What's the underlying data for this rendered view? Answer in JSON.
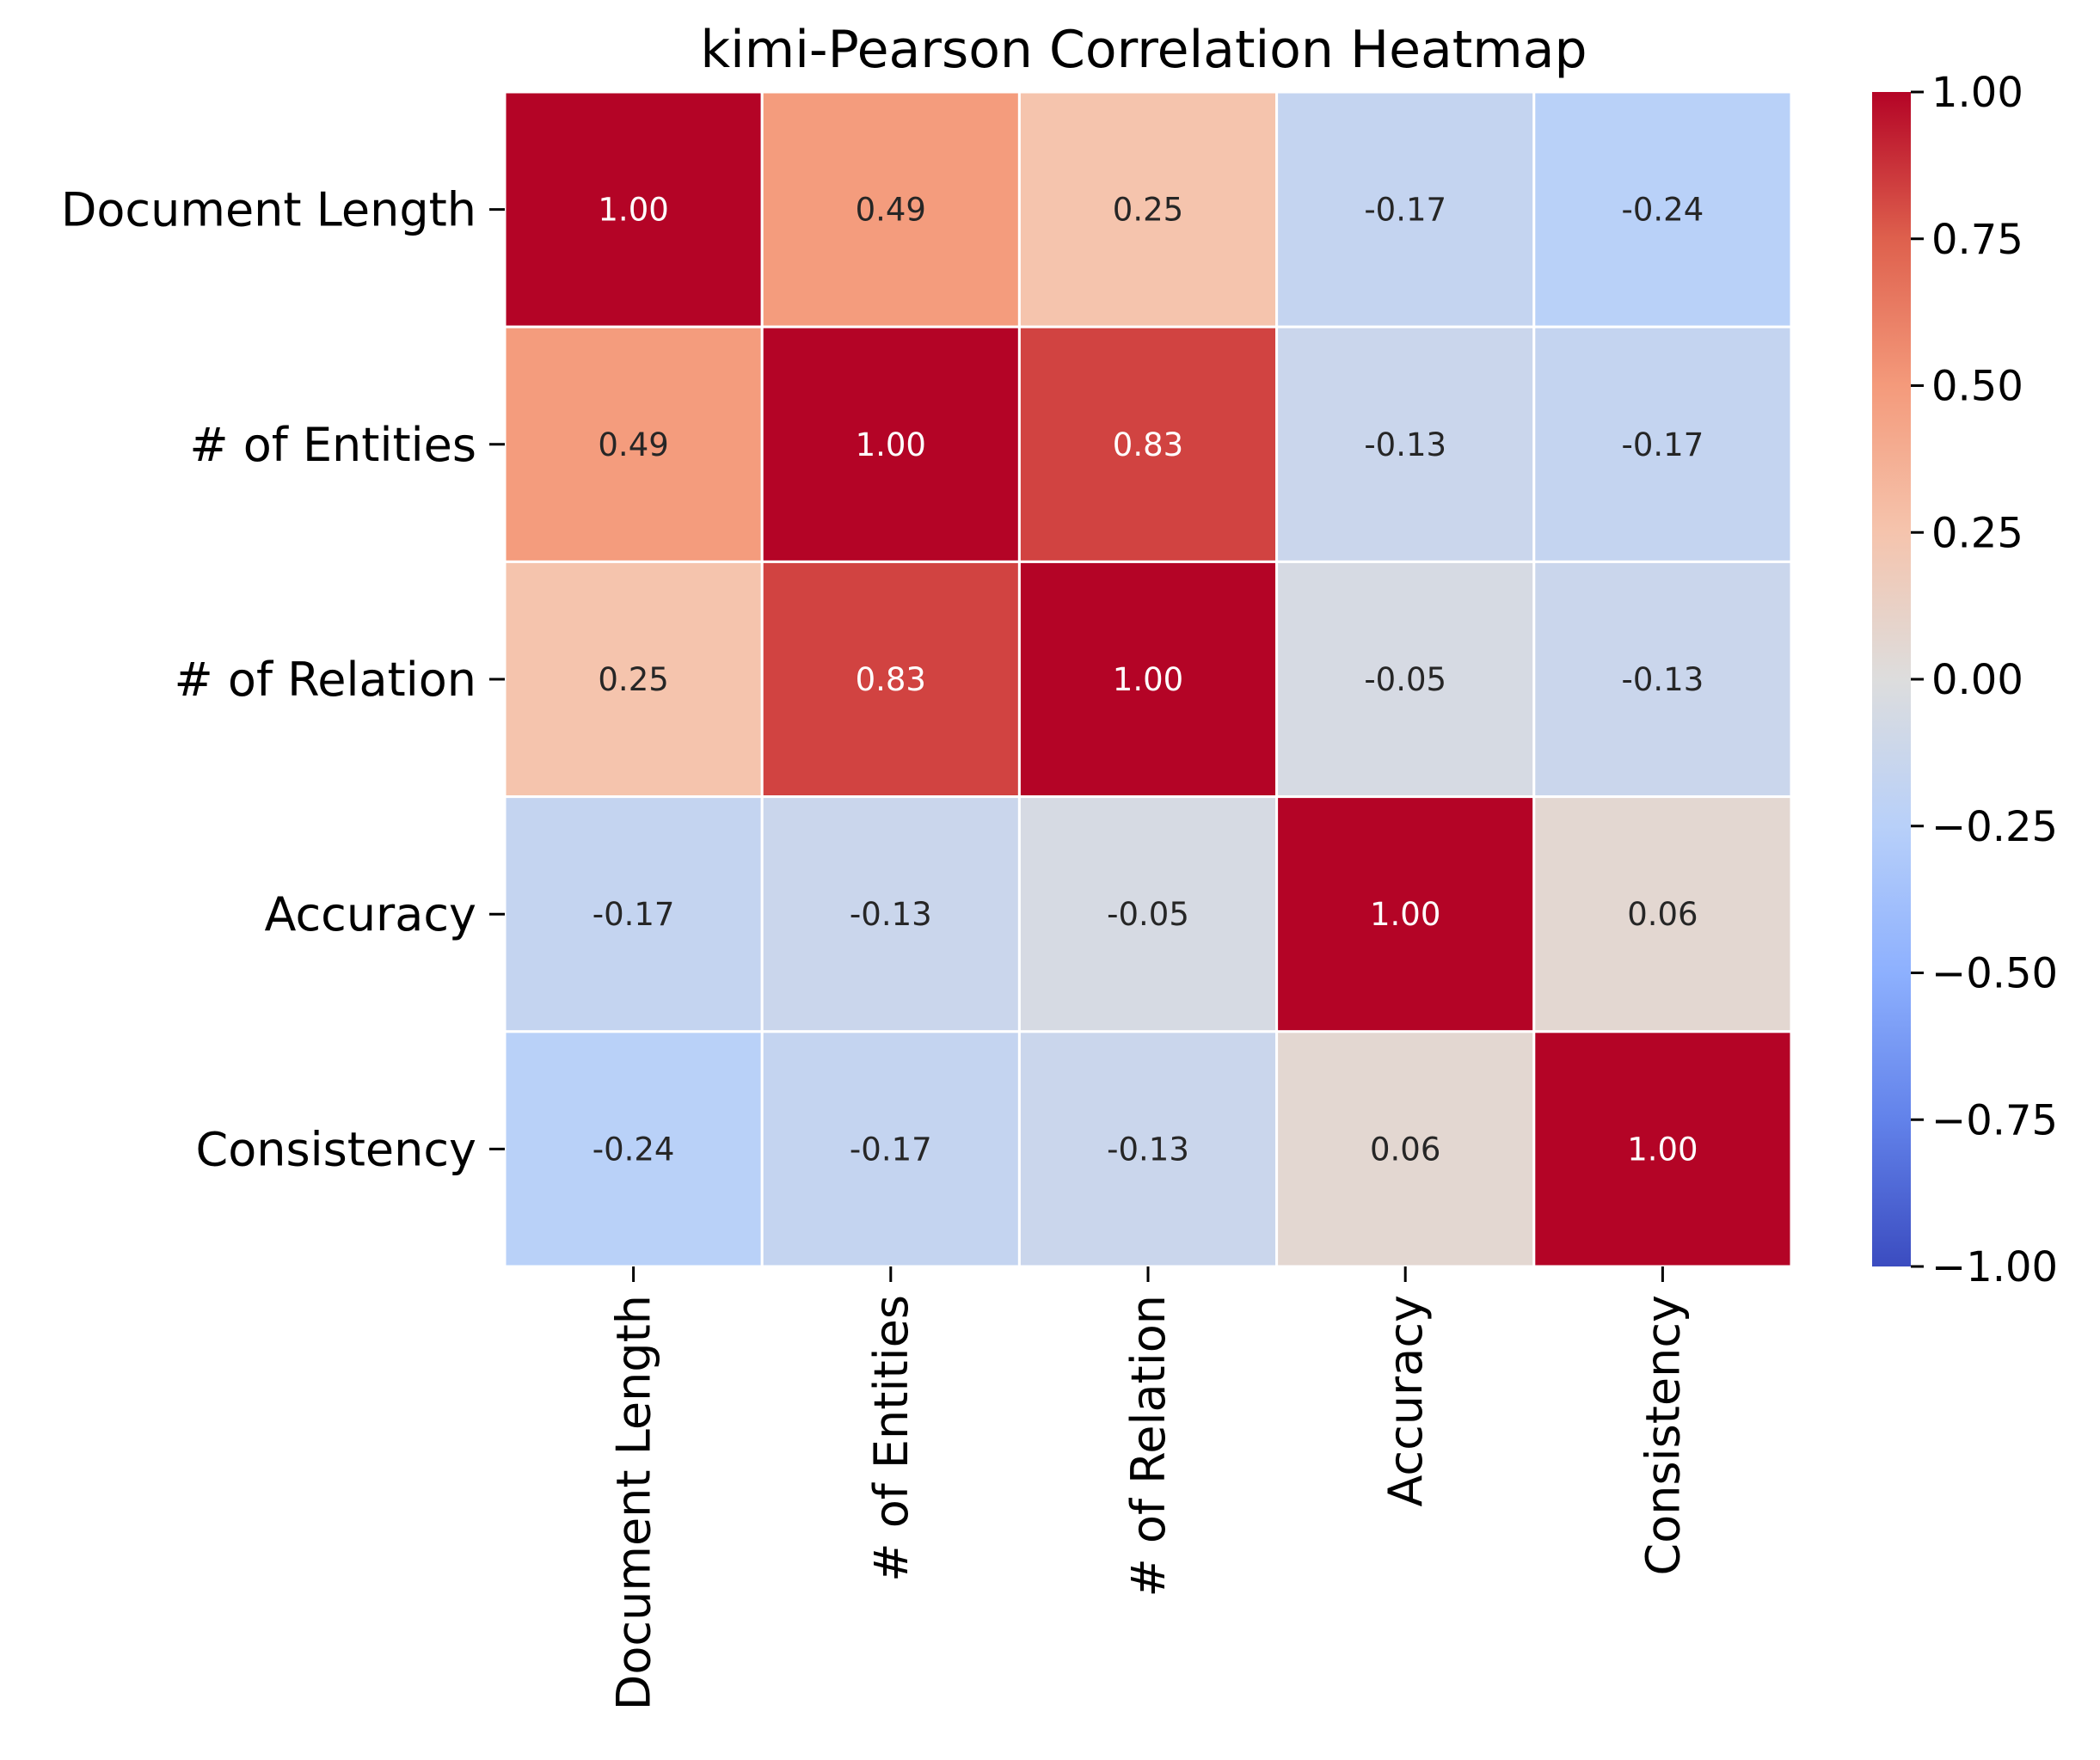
{
  "chart_data": {
    "type": "heatmap",
    "title": "kimi-Pearson Correlation Heatmap",
    "row_labels": [
      "Document Length",
      "# of Entities",
      "# of Relation",
      "Accuracy",
      "Consistency"
    ],
    "col_labels": [
      "Document Length",
      "# of Entities",
      "# of Relation",
      "Accuracy",
      "Consistency"
    ],
    "values": [
      [
        1.0,
        0.49,
        0.25,
        -0.17,
        -0.24
      ],
      [
        0.49,
        1.0,
        0.83,
        -0.13,
        -0.17
      ],
      [
        0.25,
        0.83,
        1.0,
        -0.05,
        -0.13
      ],
      [
        -0.17,
        -0.13,
        -0.05,
        1.0,
        0.06
      ],
      [
        -0.24,
        -0.17,
        -0.13,
        0.06,
        1.0
      ]
    ],
    "value_format": "0.00",
    "colormap": "coolwarm",
    "colorscale_range": [
      -1.0,
      1.0
    ],
    "colorbar_ticks": [
      "1.00",
      "0.75",
      "0.50",
      "0.25",
      "0.00",
      "−0.25",
      "−0.50",
      "−0.75",
      "−1.00"
    ],
    "colorbar_tick_values": [
      1.0,
      0.75,
      0.5,
      0.25,
      0.0,
      -0.25,
      -0.5,
      -0.75,
      -1.0
    ],
    "cell_border_color": "#ffffff",
    "xlabel": "",
    "ylabel": ""
  }
}
